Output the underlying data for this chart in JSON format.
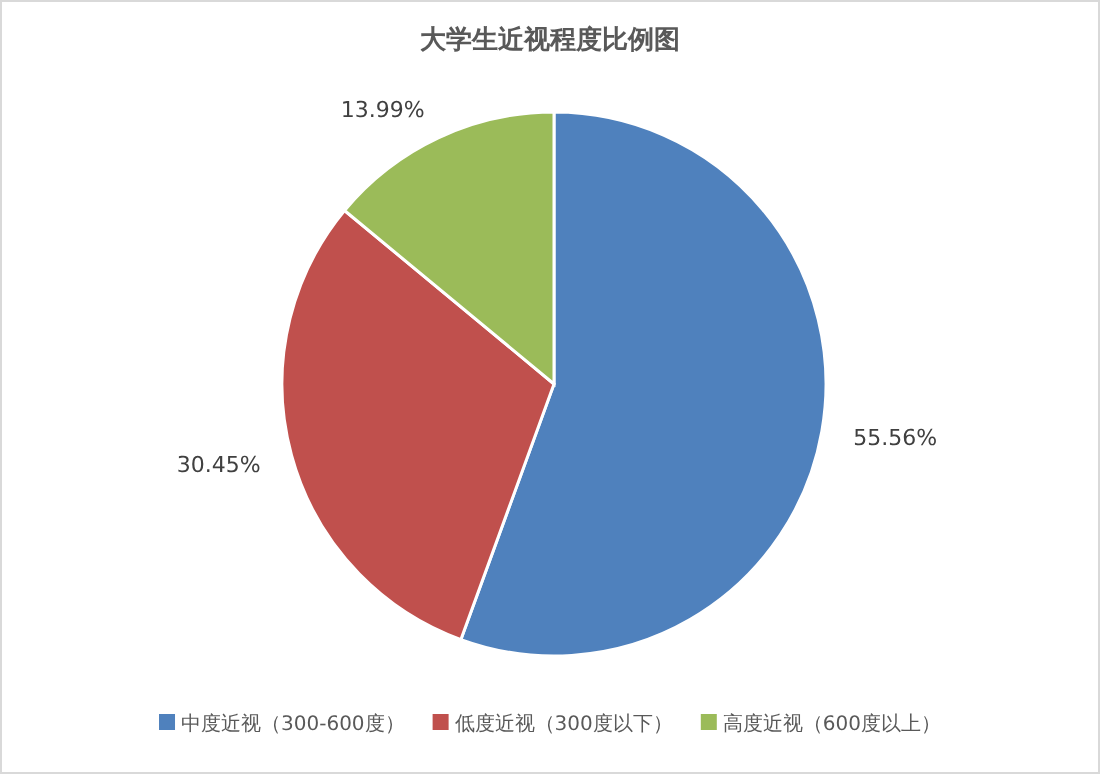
{
  "chart_data": {
    "type": "pie",
    "title": "大学生近视程度比例图",
    "categories": [
      "中度近视（300-600度）",
      "低度近视（300度以下）",
      "高度近视（600度以上）"
    ],
    "values": [
      55.56,
      30.45,
      13.99
    ],
    "colors": [
      "#4f81bd",
      "#c0504d",
      "#9bbb59"
    ],
    "value_labels": [
      "55.56%",
      "30.45%",
      "13.99%"
    ],
    "legend": "bottom"
  }
}
